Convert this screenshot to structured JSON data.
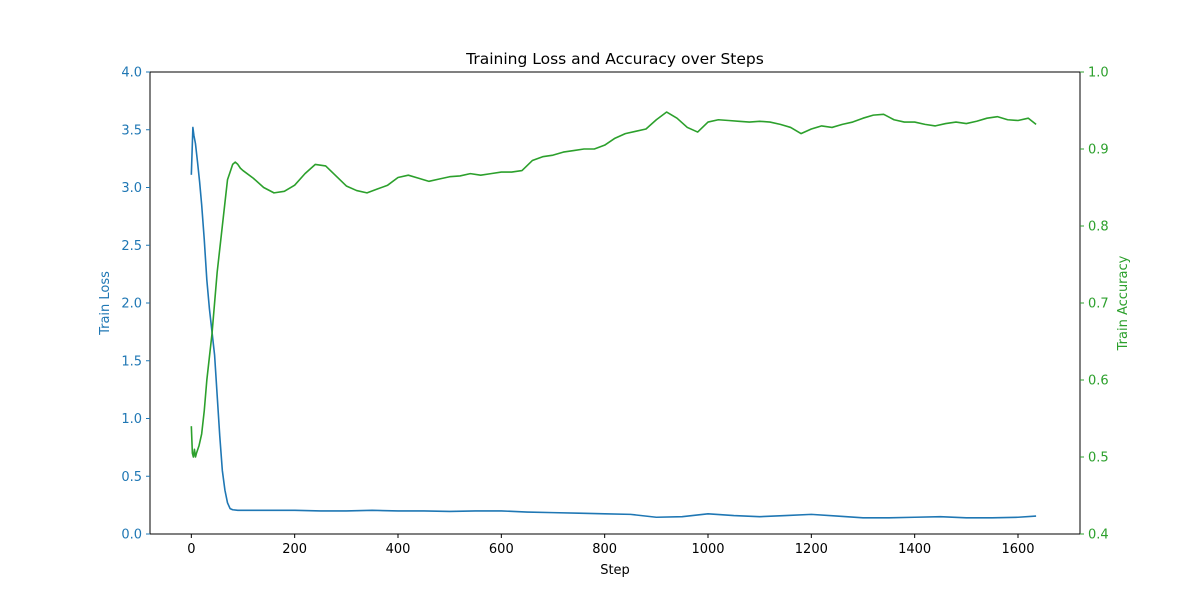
{
  "chart_data": {
    "type": "line",
    "title": "Training Loss and Accuracy over Steps",
    "xlabel": "Step",
    "ylabel_left": "Train Loss",
    "ylabel_right": "Train Accuracy",
    "xlim": [
      -80,
      1720
    ],
    "ylim_left": [
      0.0,
      4.0
    ],
    "ylim_right": [
      0.4,
      1.0
    ],
    "x_ticks": [
      0,
      200,
      400,
      600,
      800,
      1000,
      1200,
      1400,
      1600
    ],
    "x_tick_labels": [
      "0",
      "200",
      "400",
      "600",
      "800",
      "1000",
      "1200",
      "1400",
      "1600"
    ],
    "y_left_ticks": [
      0.0,
      0.5,
      1.0,
      1.5,
      2.0,
      2.5,
      3.0,
      3.5,
      4.0
    ],
    "y_left_tick_labels": [
      "0.0",
      "0.5",
      "1.0",
      "1.5",
      "2.0",
      "2.5",
      "3.0",
      "3.5",
      "4.0"
    ],
    "y_right_ticks": [
      0.4,
      0.5,
      0.6,
      0.7,
      0.8,
      0.9,
      1.0
    ],
    "y_right_tick_labels": [
      "0.4",
      "0.5",
      "0.6",
      "0.7",
      "0.8",
      "0.9",
      "1.0"
    ],
    "grid": false,
    "colors": {
      "loss": "#1f77b4",
      "accuracy": "#2ca02c"
    },
    "series": [
      {
        "axis": "left",
        "color": "#1f77b4",
        "x": [
          0,
          3,
          5,
          8,
          12,
          16,
          20,
          25,
          30,
          35,
          40,
          45,
          50,
          55,
          60,
          65,
          70,
          75,
          80,
          90,
          100,
          150,
          200,
          250,
          300,
          350,
          400,
          450,
          500,
          550,
          600,
          650,
          700,
          750,
          800,
          850,
          900,
          950,
          1000,
          1050,
          1100,
          1150,
          1200,
          1250,
          1300,
          1350,
          1400,
          1450,
          1500,
          1550,
          1600,
          1635
        ],
        "y": [
          3.11,
          3.52,
          3.45,
          3.38,
          3.22,
          3.05,
          2.85,
          2.55,
          2.2,
          1.95,
          1.75,
          1.55,
          1.2,
          0.85,
          0.55,
          0.38,
          0.27,
          0.22,
          0.21,
          0.205,
          0.205,
          0.205,
          0.205,
          0.2,
          0.2,
          0.205,
          0.2,
          0.2,
          0.195,
          0.2,
          0.2,
          0.19,
          0.185,
          0.18,
          0.175,
          0.17,
          0.145,
          0.15,
          0.175,
          0.16,
          0.15,
          0.16,
          0.17,
          0.155,
          0.14,
          0.14,
          0.145,
          0.15,
          0.14,
          0.14,
          0.145,
          0.155
        ]
      },
      {
        "axis": "right",
        "color": "#2ca02c",
        "x": [
          0,
          2,
          4,
          6,
          8,
          10,
          15,
          20,
          25,
          30,
          35,
          40,
          45,
          50,
          55,
          60,
          65,
          70,
          75,
          80,
          85,
          90,
          95,
          100,
          120,
          140,
          160,
          180,
          200,
          220,
          240,
          260,
          280,
          300,
          320,
          340,
          360,
          380,
          400,
          420,
          440,
          460,
          480,
          500,
          520,
          540,
          560,
          580,
          600,
          620,
          640,
          660,
          680,
          700,
          720,
          740,
          760,
          780,
          800,
          820,
          840,
          860,
          880,
          900,
          920,
          940,
          960,
          980,
          1000,
          1020,
          1040,
          1060,
          1080,
          1100,
          1120,
          1140,
          1160,
          1180,
          1200,
          1220,
          1240,
          1260,
          1280,
          1300,
          1320,
          1340,
          1360,
          1380,
          1400,
          1420,
          1440,
          1460,
          1480,
          1500,
          1520,
          1540,
          1560,
          1580,
          1600,
          1620,
          1635
        ],
        "y": [
          0.54,
          0.505,
          0.5,
          0.51,
          0.5,
          0.505,
          0.515,
          0.53,
          0.56,
          0.6,
          0.63,
          0.66,
          0.7,
          0.74,
          0.77,
          0.8,
          0.83,
          0.86,
          0.87,
          0.88,
          0.883,
          0.88,
          0.875,
          0.872,
          0.862,
          0.85,
          0.843,
          0.845,
          0.853,
          0.868,
          0.88,
          0.878,
          0.865,
          0.852,
          0.846,
          0.843,
          0.848,
          0.853,
          0.863,
          0.866,
          0.862,
          0.858,
          0.861,
          0.864,
          0.865,
          0.868,
          0.866,
          0.868,
          0.87,
          0.87,
          0.872,
          0.885,
          0.89,
          0.892,
          0.896,
          0.898,
          0.9,
          0.9,
          0.905,
          0.914,
          0.92,
          0.923,
          0.926,
          0.938,
          0.948,
          0.94,
          0.928,
          0.922,
          0.935,
          0.938,
          0.937,
          0.936,
          0.935,
          0.936,
          0.935,
          0.932,
          0.928,
          0.92,
          0.926,
          0.93,
          0.928,
          0.932,
          0.935,
          0.94,
          0.944,
          0.945,
          0.938,
          0.935,
          0.935,
          0.932,
          0.93,
          0.933,
          0.935,
          0.933,
          0.936,
          0.94,
          0.942,
          0.938,
          0.937,
          0.94,
          0.932
        ]
      }
    ]
  }
}
